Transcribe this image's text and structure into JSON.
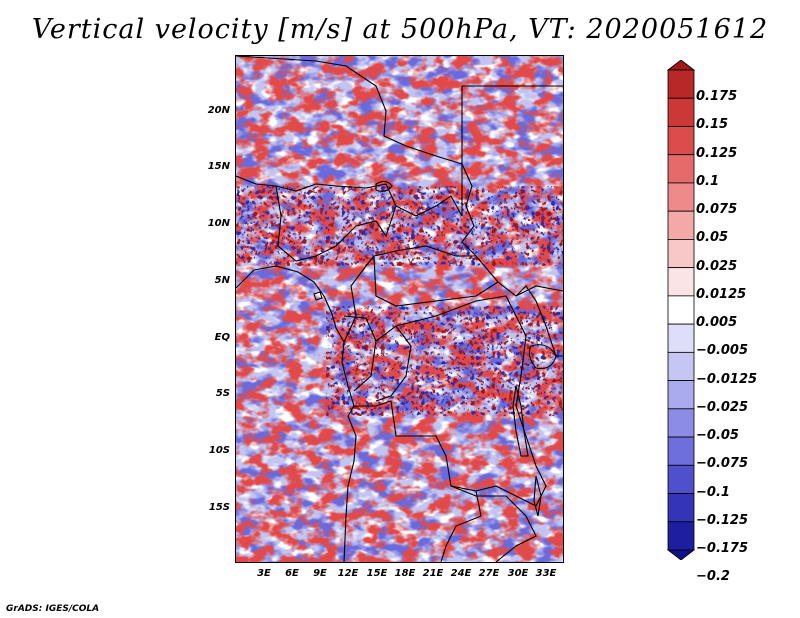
{
  "title": "Vertical velocity [m/s] at 500hPa, VT: 2020051612",
  "footer": "GrADS: IGES/COLA",
  "map": {
    "variable": "Vertical velocity",
    "units": "m/s",
    "level": "500hPa",
    "valid_time": "2020051612",
    "lat_labels": [
      "20N",
      "15N",
      "10N",
      "5N",
      "EQ",
      "5S",
      "10S",
      "15S"
    ],
    "lat_values": [
      20,
      15,
      10,
      5,
      0,
      -5,
      -10,
      -15
    ],
    "lon_labels": [
      "3E",
      "6E",
      "9E",
      "12E",
      "15E",
      "18E",
      "21E",
      "24E",
      "27E",
      "30E",
      "33E"
    ],
    "lon_values": [
      3,
      6,
      9,
      12,
      15,
      18,
      21,
      24,
      27,
      30,
      33
    ],
    "extent": {
      "lon_min": 0,
      "lon_max": 35,
      "lat_min": -20,
      "lat_max": 25
    }
  },
  "colorbar": {
    "labels": [
      "0.175",
      "0.15",
      "0.125",
      "0.1",
      "0.075",
      "0.05",
      "0.025",
      "0.0125",
      "0.005",
      "−0.005",
      "−0.0125",
      "−0.025",
      "−0.05",
      "−0.075",
      "−0.1",
      "−0.125",
      "−0.175",
      "−0.2"
    ],
    "colors": [
      "#a01818",
      "#b82828",
      "#cc3838",
      "#dc4c4c",
      "#e66a6a",
      "#ee8a8a",
      "#f4a8a8",
      "#f8c8c8",
      "#fbe4e4",
      "#ffffff",
      "#dedef8",
      "#c6c6f2",
      "#aaaaee",
      "#8c8ce6",
      "#6e6edc",
      "#5050cc",
      "#3434b8",
      "#1e1ea0",
      "#10108a"
    ]
  }
}
